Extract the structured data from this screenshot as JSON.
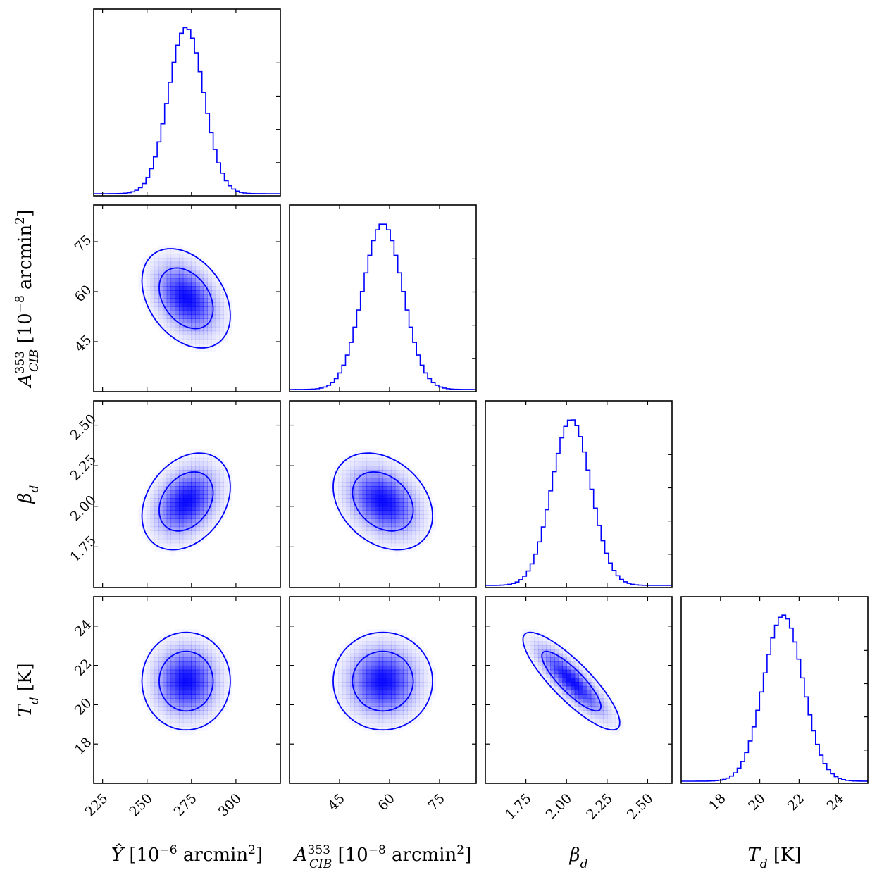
{
  "chart_data": {
    "type": "corner",
    "color": "#0000ff",
    "parameters": [
      {
        "name": "Y_hat",
        "mean": 272,
        "sd": 10,
        "range": [
          220,
          325
        ],
        "ticks": [
          225,
          250,
          275,
          300
        ],
        "label": {
          "main": "Ŷ",
          "sup": "",
          "sub": "",
          "unit_pre": " [10",
          "unit_exp": "−6",
          "unit_post": " arcmin",
          "unit_post_exp": "2",
          "unit_end": "]"
        }
      },
      {
        "name": "A_CIB_353",
        "mean": 58,
        "sd": 6,
        "range": [
          30,
          86
        ],
        "ticks": [
          45,
          60,
          75
        ],
        "label": {
          "main": "A",
          "sup": "353",
          "sub": "CIB",
          "unit_pre": " [10",
          "unit_exp": "−8",
          "unit_post": " arcmin",
          "unit_post_exp": "2",
          "unit_end": "]"
        }
      },
      {
        "name": "beta_d",
        "mean": 2.03,
        "sd": 0.12,
        "range": [
          1.5,
          2.65
        ],
        "ticks": [
          1.75,
          2.0,
          2.25,
          2.5
        ],
        "label": {
          "main": "β",
          "sup": "",
          "sub": "d",
          "unit_pre": "",
          "unit_exp": "",
          "unit_post": "",
          "unit_post_exp": "",
          "unit_end": ""
        }
      },
      {
        "name": "T_d",
        "mean": 21.2,
        "sd": 1.0,
        "range": [
          16,
          25.5
        ],
        "ticks": [
          18,
          20,
          22,
          24
        ],
        "label": {
          "main": "T",
          "sup": "",
          "sub": "d",
          "unit_pre": " [K]",
          "unit_exp": "",
          "unit_post": "",
          "unit_post_exp": "",
          "unit_end": ""
        }
      }
    ],
    "correlations": [
      {
        "pair": [
          0,
          1
        ],
        "rho": -0.35
      },
      {
        "pair": [
          0,
          2
        ],
        "rho": 0.3
      },
      {
        "pair": [
          1,
          2
        ],
        "rho": -0.3
      },
      {
        "pair": [
          0,
          3
        ],
        "rho": 0.0
      },
      {
        "pair": [
          1,
          3
        ],
        "rho": 0.0
      },
      {
        "pair": [
          2,
          3
        ],
        "rho": -0.85
      }
    ],
    "tick_labels": {
      "0": [
        "225",
        "250",
        "275",
        "300"
      ],
      "1": [
        "45",
        "60",
        "75"
      ],
      "2": [
        "1.75",
        "2.00",
        "2.25",
        "2.50"
      ],
      "3": [
        "18",
        "20",
        "22",
        "24"
      ]
    },
    "histogram_bins": 50,
    "contour_levels": [
      "1-sigma",
      "2-sigma"
    ]
  }
}
